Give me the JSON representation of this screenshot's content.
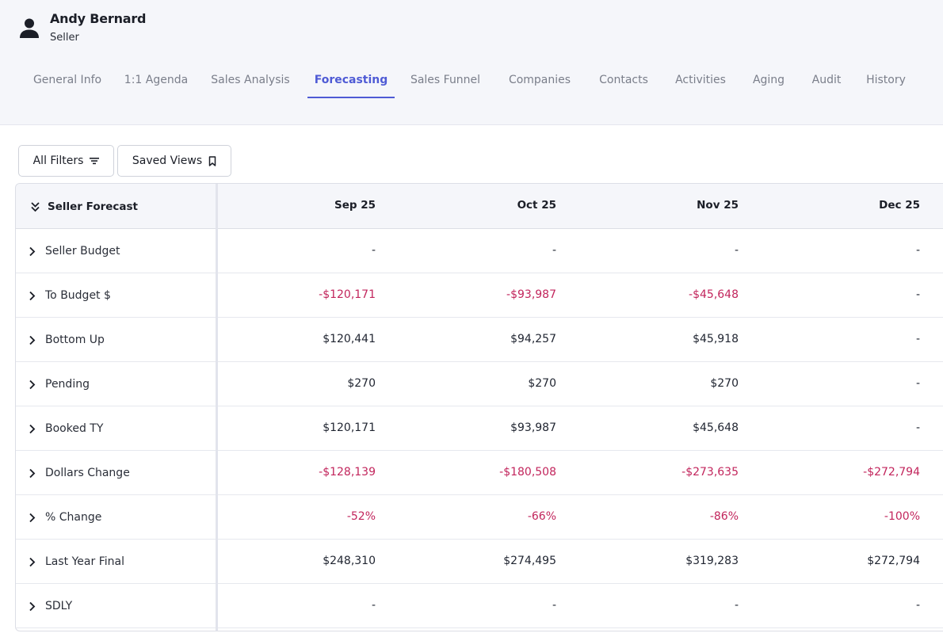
{
  "user": {
    "name": "Andy Bernard",
    "role": "Seller",
    "avatar_icon": "user-icon"
  },
  "tabs": [
    {
      "label": "General Info",
      "active": false
    },
    {
      "label": "1:1 Agenda",
      "active": false
    },
    {
      "label": "Sales Analysis",
      "active": false
    },
    {
      "label": "Forecasting",
      "active": true
    },
    {
      "label": "Sales Funnel",
      "active": false
    },
    {
      "label": "Companies",
      "active": false
    },
    {
      "label": "Contacts",
      "active": false
    },
    {
      "label": "Activities",
      "active": false
    },
    {
      "label": "Aging",
      "active": false
    },
    {
      "label": "Audit",
      "active": false
    },
    {
      "label": "History",
      "active": false
    }
  ],
  "toolbar": {
    "filters_label": "All Filters",
    "filters_icon": "filter-lines-icon",
    "saved_views_label": "Saved Views",
    "saved_views_icon": "bookmark-icon"
  },
  "grid": {
    "header_label": "Seller Forecast",
    "header_icon": "double-chevron-down-icon",
    "columns": [
      "Sep 25",
      "Oct 25",
      "Nov 25",
      "Dec 25"
    ],
    "rows": [
      {
        "label": "Seller Budget",
        "values": [
          "-",
          "-",
          "-",
          "-"
        ],
        "negative": [
          false,
          false,
          false,
          false
        ]
      },
      {
        "label": "To Budget $",
        "values": [
          "-$120,171",
          "-$93,987",
          "-$45,648",
          "-"
        ],
        "negative": [
          true,
          true,
          true,
          false
        ]
      },
      {
        "label": "Bottom Up",
        "values": [
          "$120,441",
          "$94,257",
          "$45,918",
          "-"
        ],
        "negative": [
          false,
          false,
          false,
          false
        ]
      },
      {
        "label": "Pending",
        "values": [
          "$270",
          "$270",
          "$270",
          "-"
        ],
        "negative": [
          false,
          false,
          false,
          false
        ]
      },
      {
        "label": "Booked TY",
        "values": [
          "$120,171",
          "$93,987",
          "$45,648",
          "-"
        ],
        "negative": [
          false,
          false,
          false,
          false
        ]
      },
      {
        "label": "Dollars Change",
        "values": [
          "-$128,139",
          "-$180,508",
          "-$273,635",
          "-$272,794"
        ],
        "negative": [
          true,
          true,
          true,
          true
        ]
      },
      {
        "label": "% Change",
        "values": [
          "-52%",
          "-66%",
          "-86%",
          "-100%"
        ],
        "negative": [
          true,
          true,
          true,
          true
        ]
      },
      {
        "label": "Last Year Final",
        "values": [
          "$248,310",
          "$274,495",
          "$319,283",
          "$272,794"
        ],
        "negative": [
          false,
          false,
          false,
          false
        ]
      },
      {
        "label": "SDLY",
        "values": [
          "-",
          "-",
          "-",
          "-"
        ],
        "negative": [
          false,
          false,
          false,
          false
        ]
      }
    ]
  },
  "colors": {
    "accent": "#4f5bd5",
    "negative": "#c2255c"
  }
}
